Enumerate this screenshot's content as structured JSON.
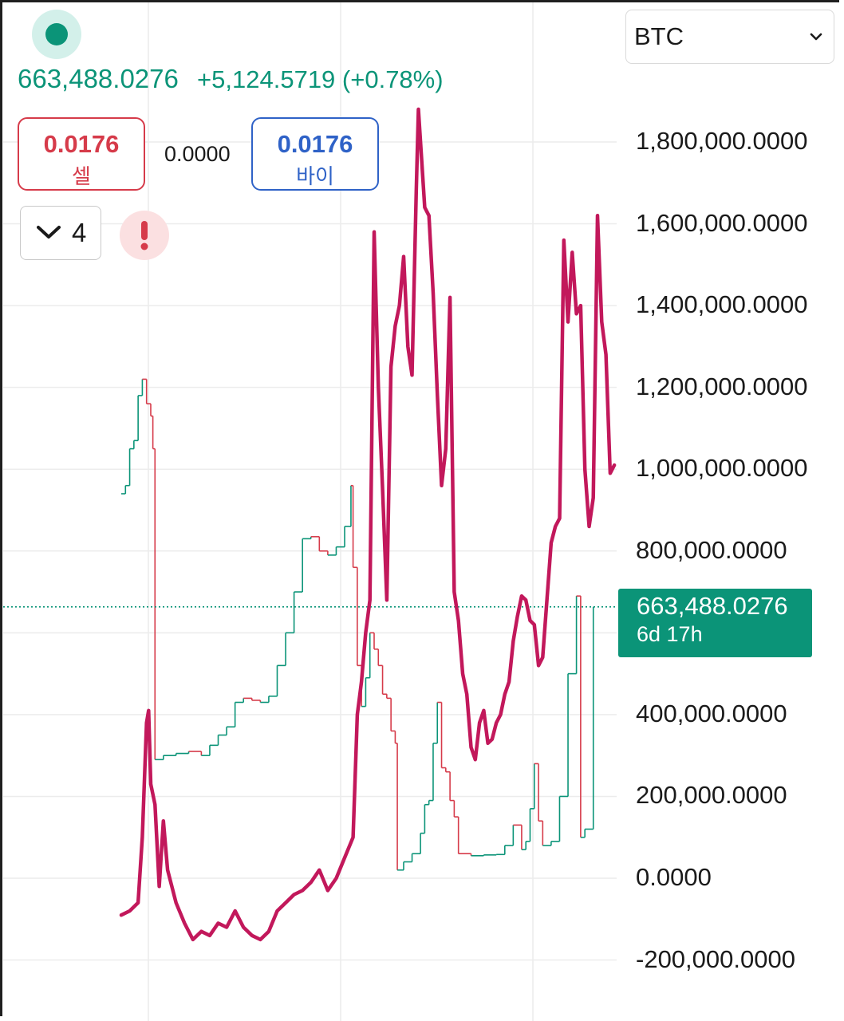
{
  "header": {
    "last_price": "663,488.0276",
    "change": "+5,124.5719 (+0.78%)"
  },
  "order": {
    "sell_price": "0.0176",
    "sell_label": "셀",
    "spread": "0.0000",
    "buy_price": "0.0176",
    "buy_label": "바이",
    "quantity": "4"
  },
  "symbol_select": {
    "selected": "BTC"
  },
  "price_tag": {
    "price": "663,488.0276",
    "countdown": "6d 17h"
  },
  "colors": {
    "up": "#0b9478",
    "down": "#d63b4a",
    "buy": "#2f62c7",
    "overlay_line": "#c2185b"
  },
  "icons": {
    "live": "dot-icon",
    "quantity": "chevron-down-icon",
    "warning": "exclamation-icon",
    "select": "chevron-down-icon"
  },
  "chart_data": {
    "type": "line",
    "y_ticks": [
      "1,800,000.0000",
      "1,600,000.0000",
      "1,400,000.0000",
      "1,200,000.0000",
      "1,000,000.0000",
      "800,000.0000",
      "400,000.0000",
      "200,000.0000",
      "0.0000",
      "-200,000.0000"
    ],
    "ylim": [
      -200000,
      1800000
    ],
    "grid": true,
    "current_price": 663488.0276,
    "series": [
      {
        "kind": "candlestick-close",
        "color_up": "#0b9478",
        "color_down": "#d63b4a",
        "points": [
          [
            0.0,
            940000
          ],
          [
            0.01,
            960000
          ],
          [
            0.02,
            1050000
          ],
          [
            0.03,
            1070000
          ],
          [
            0.04,
            1180000
          ],
          [
            0.05,
            1220000
          ],
          [
            0.06,
            1160000
          ],
          [
            0.07,
            1130000
          ],
          [
            0.075,
            1050000
          ],
          [
            0.08,
            290000
          ],
          [
            0.1,
            300000
          ],
          [
            0.13,
            305000
          ],
          [
            0.16,
            310000
          ],
          [
            0.19,
            300000
          ],
          [
            0.21,
            325000
          ],
          [
            0.23,
            350000
          ],
          [
            0.25,
            370000
          ],
          [
            0.27,
            430000
          ],
          [
            0.29,
            440000
          ],
          [
            0.31,
            435000
          ],
          [
            0.33,
            430000
          ],
          [
            0.35,
            445000
          ],
          [
            0.37,
            520000
          ],
          [
            0.39,
            600000
          ],
          [
            0.41,
            700000
          ],
          [
            0.43,
            830000
          ],
          [
            0.45,
            835000
          ],
          [
            0.47,
            800000
          ],
          [
            0.49,
            790000
          ],
          [
            0.51,
            810000
          ],
          [
            0.53,
            860000
          ],
          [
            0.545,
            960000
          ],
          [
            0.55,
            760000
          ],
          [
            0.56,
            520000
          ],
          [
            0.57,
            420000
          ],
          [
            0.58,
            490000
          ],
          [
            0.59,
            600000
          ],
          [
            0.6,
            560000
          ],
          [
            0.61,
            520000
          ],
          [
            0.62,
            450000
          ],
          [
            0.63,
            440000
          ],
          [
            0.64,
            360000
          ],
          [
            0.65,
            330000
          ],
          [
            0.655,
            20000
          ],
          [
            0.67,
            40000
          ],
          [
            0.69,
            60000
          ],
          [
            0.71,
            110000
          ],
          [
            0.72,
            180000
          ],
          [
            0.73,
            190000
          ],
          [
            0.74,
            330000
          ],
          [
            0.75,
            430000
          ],
          [
            0.76,
            270000
          ],
          [
            0.77,
            260000
          ],
          [
            0.78,
            190000
          ],
          [
            0.79,
            150000
          ],
          [
            0.8,
            60000
          ],
          [
            0.83,
            55000
          ],
          [
            0.86,
            57000
          ],
          [
            0.89,
            58000
          ],
          [
            0.91,
            80000
          ],
          [
            0.93,
            130000
          ],
          [
            0.95,
            70000
          ],
          [
            0.96,
            90000
          ],
          [
            0.97,
            170000
          ],
          [
            0.98,
            280000
          ],
          [
            0.99,
            140000
          ],
          [
            1.0,
            80000
          ],
          [
            1.02,
            90000
          ],
          [
            1.04,
            200000
          ],
          [
            1.06,
            500000
          ],
          [
            1.08,
            690000
          ],
          [
            1.09,
            100000
          ],
          [
            1.1,
            120000
          ],
          [
            1.12,
            663488
          ]
        ]
      },
      {
        "kind": "overlay-line",
        "color": "#c2185b",
        "points": [
          [
            0.0,
            -90000
          ],
          [
            0.02,
            -80000
          ],
          [
            0.04,
            -60000
          ],
          [
            0.05,
            100000
          ],
          [
            0.06,
            380000
          ],
          [
            0.065,
            410000
          ],
          [
            0.07,
            230000
          ],
          [
            0.08,
            180000
          ],
          [
            0.09,
            -20000
          ],
          [
            0.1,
            140000
          ],
          [
            0.11,
            20000
          ],
          [
            0.13,
            -60000
          ],
          [
            0.15,
            -110000
          ],
          [
            0.17,
            -150000
          ],
          [
            0.19,
            -130000
          ],
          [
            0.21,
            -140000
          ],
          [
            0.23,
            -110000
          ],
          [
            0.25,
            -120000
          ],
          [
            0.27,
            -80000
          ],
          [
            0.29,
            -120000
          ],
          [
            0.31,
            -140000
          ],
          [
            0.33,
            -150000
          ],
          [
            0.35,
            -130000
          ],
          [
            0.37,
            -80000
          ],
          [
            0.39,
            -60000
          ],
          [
            0.41,
            -40000
          ],
          [
            0.43,
            -30000
          ],
          [
            0.45,
            -10000
          ],
          [
            0.47,
            20000
          ],
          [
            0.49,
            -30000
          ],
          [
            0.51,
            0
          ],
          [
            0.53,
            50000
          ],
          [
            0.55,
            100000
          ],
          [
            0.56,
            400000
          ],
          [
            0.57,
            480000
          ],
          [
            0.58,
            600000
          ],
          [
            0.59,
            680000
          ],
          [
            0.6,
            1580000
          ],
          [
            0.61,
            1200000
          ],
          [
            0.62,
            950000
          ],
          [
            0.63,
            680000
          ],
          [
            0.64,
            1250000
          ],
          [
            0.65,
            1350000
          ],
          [
            0.66,
            1400000
          ],
          [
            0.67,
            1520000
          ],
          [
            0.68,
            1300000
          ],
          [
            0.69,
            1230000
          ],
          [
            0.7,
            1680000
          ],
          [
            0.705,
            1880000
          ],
          [
            0.72,
            1640000
          ],
          [
            0.73,
            1620000
          ],
          [
            0.74,
            1430000
          ],
          [
            0.75,
            1180000
          ],
          [
            0.76,
            960000
          ],
          [
            0.77,
            1050000
          ],
          [
            0.78,
            1420000
          ],
          [
            0.79,
            700000
          ],
          [
            0.8,
            630000
          ],
          [
            0.81,
            500000
          ],
          [
            0.82,
            450000
          ],
          [
            0.83,
            320000
          ],
          [
            0.84,
            290000
          ],
          [
            0.85,
            380000
          ],
          [
            0.86,
            410000
          ],
          [
            0.87,
            330000
          ],
          [
            0.88,
            340000
          ],
          [
            0.89,
            380000
          ],
          [
            0.9,
            400000
          ],
          [
            0.91,
            450000
          ],
          [
            0.92,
            480000
          ],
          [
            0.93,
            580000
          ],
          [
            0.94,
            640000
          ],
          [
            0.95,
            690000
          ],
          [
            0.96,
            680000
          ],
          [
            0.97,
            630000
          ],
          [
            0.98,
            620000
          ],
          [
            0.99,
            520000
          ],
          [
            1.0,
            540000
          ],
          [
            1.01,
            680000
          ],
          [
            1.02,
            820000
          ],
          [
            1.03,
            860000
          ],
          [
            1.04,
            880000
          ],
          [
            1.05,
            1560000
          ],
          [
            1.06,
            1360000
          ],
          [
            1.07,
            1530000
          ],
          [
            1.08,
            1380000
          ],
          [
            1.09,
            1400000
          ],
          [
            1.1,
            1000000
          ],
          [
            1.11,
            860000
          ],
          [
            1.12,
            930000
          ],
          [
            1.13,
            1620000
          ],
          [
            1.14,
            1360000
          ],
          [
            1.15,
            1280000
          ],
          [
            1.16,
            990000
          ],
          [
            1.17,
            1010000
          ]
        ]
      }
    ]
  }
}
